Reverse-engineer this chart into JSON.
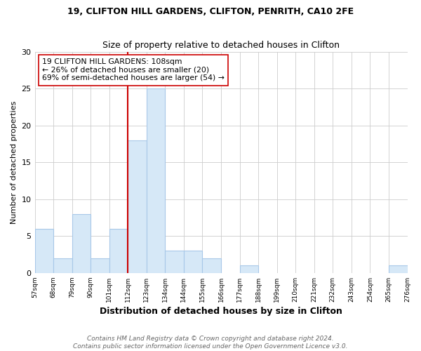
{
  "title": "19, CLIFTON HILL GARDENS, CLIFTON, PENRITH, CA10 2FE",
  "subtitle": "Size of property relative to detached houses in Clifton",
  "xlabel": "Distribution of detached houses by size in Clifton",
  "ylabel": "Number of detached properties",
  "bar_color": "#d6e8f7",
  "bar_edgecolor": "#a8c8e8",
  "counts": [
    6,
    2,
    8,
    2,
    6,
    18,
    25,
    3,
    3,
    2,
    0,
    1,
    0,
    0,
    0,
    0,
    0,
    0,
    0,
    1
  ],
  "vline_color": "#cc0000",
  "vline_index": 5,
  "ylim": [
    0,
    30
  ],
  "yticks": [
    0,
    5,
    10,
    15,
    20,
    25,
    30
  ],
  "annotation_line1": "19 CLIFTON HILL GARDENS: 108sqm",
  "annotation_line2": "← 26% of detached houses are smaller (20)",
  "annotation_line3": "69% of semi-detached houses are larger (54) →",
  "footer_line1": "Contains HM Land Registry data © Crown copyright and database right 2024.",
  "footer_line2": "Contains public sector information licensed under the Open Government Licence v3.0.",
  "tick_labels": [
    "57sqm",
    "68sqm",
    "79sqm",
    "90sqm",
    "101sqm",
    "112sqm",
    "123sqm",
    "134sqm",
    "144sqm",
    "155sqm",
    "166sqm",
    "177sqm",
    "188sqm",
    "199sqm",
    "210sqm",
    "221sqm",
    "232sqm",
    "243sqm",
    "254sqm",
    "265sqm",
    "276sqm"
  ],
  "n_bins": 20,
  "title_fontsize": 9,
  "subtitle_fontsize": 9,
  "annotation_fontsize": 7.8,
  "footer_fontsize": 6.5
}
